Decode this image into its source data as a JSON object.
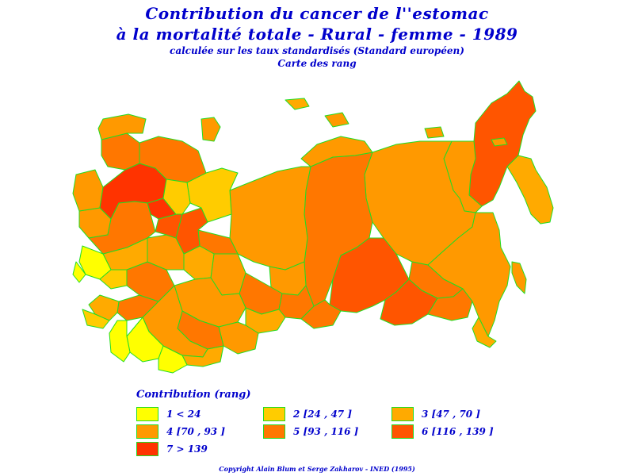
{
  "title": {
    "line1": "Contribution du cancer de l''estomac",
    "line2": "à la mortalité totale  -  Rural  -  femme  -  1989",
    "line3": "calculée sur les taux standardisés (Standard européen)",
    "line4": "Carte des rang"
  },
  "legend": {
    "title": "Contribution  (rang)",
    "items": [
      {
        "label": "1  <  24",
        "color": "#ffff00"
      },
      {
        "label": "2  [24 ,  47 ]",
        "color": "#ffcc00"
      },
      {
        "label": "3  [47 ,  70 ]",
        "color": "#ffaa00"
      },
      {
        "label": "4  [70 ,  93 ]",
        "color": "#ff9900"
      },
      {
        "label": "5  [93 ,  116 ]",
        "color": "#ff7700"
      },
      {
        "label": "6  [116 ,  139 ]",
        "color": "#ff5500"
      },
      {
        "label": "7  >  139",
        "color": "#ff3300"
      }
    ]
  },
  "border_color": "#22dd22",
  "copyright": "Copyright  Alain  Blum  et  Serge  Zakharov  -  INED  (1995)"
}
